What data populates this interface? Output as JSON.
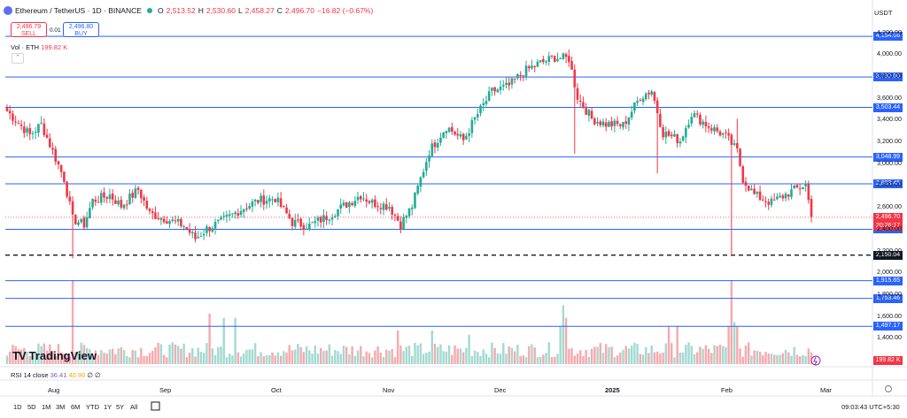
{
  "header": {
    "symbol": "Ethereum / TetherUS · 1D · BINANCE",
    "o_label": "O",
    "o_val": "2,513.52",
    "h_label": "H",
    "h_val": "2,530.60",
    "l_label": "L",
    "l_val": "2,458.27",
    "c_label": "C",
    "c_val": "2,496.70",
    "change": "−16.82 (−0.67%)"
  },
  "trade": {
    "sell_price": "2,496.79",
    "sell_label": "SELL",
    "buy_price": "2,496.80",
    "buy_label": "BUY",
    "spread": "0.01"
  },
  "volume_legend": {
    "label": "Vol · ETH",
    "value": "199.82 K"
  },
  "collapse_icon": "chevron-up-icon",
  "currency": "USDT",
  "price_axis": [
    "4,200.00",
    "4,000.00",
    "3,800.00",
    "3,600.00",
    "3,400.00",
    "3,200.00",
    "3,000.00",
    "2,800.00",
    "2,600.00",
    "2,400.00",
    "2,200.00",
    "2,000.00",
    "1,800.00",
    "1,600.00",
    "1,400.00"
  ],
  "levels": [
    {
      "price": 4154.06,
      "label": "4,154.06",
      "style": "solid"
    },
    {
      "price": 3782.06,
      "label": "3,782.06",
      "style": "solid"
    },
    {
      "price": 3503.44,
      "label": "3,503.44",
      "style": "solid"
    },
    {
      "price": 3048.99,
      "label": "3,048.99",
      "style": "solid"
    },
    {
      "price": 2803.45,
      "label": "2,803.45",
      "style": "solid"
    },
    {
      "price": 2386.5,
      "label": "2,386.50",
      "style": "solid"
    },
    {
      "price": 2150.04,
      "label": "2,150.04",
      "style": "dashed"
    },
    {
      "price": 1915.65,
      "label": "1,915.65",
      "style": "solid"
    },
    {
      "price": 1753.46,
      "label": "1,753.46",
      "style": "solid"
    },
    {
      "price": 1497.17,
      "label": "1,497.17",
      "style": "solid"
    }
  ],
  "last_price": {
    "label": "2,496.70",
    "countdown": "20:26:17"
  },
  "volume_tag": "199.82 K",
  "rsi": {
    "label": "RSI 14 close",
    "v1": "36.41",
    "v2": "40.90",
    "v3": "∅",
    "v4": "∅"
  },
  "time_axis": [
    {
      "label": "Aug",
      "bold": false
    },
    {
      "label": "Sep",
      "bold": false
    },
    {
      "label": "Oct",
      "bold": false
    },
    {
      "label": "Nov",
      "bold": false
    },
    {
      "label": "Dec",
      "bold": false
    },
    {
      "label": "2025",
      "bold": true
    },
    {
      "label": "Feb",
      "bold": false
    },
    {
      "label": "Mar",
      "bold": false
    }
  ],
  "timeframes": [
    "1D",
    "5D",
    "1M",
    "3M",
    "6M",
    "YTD",
    "1Y",
    "5Y",
    "All"
  ],
  "clock": "09:03:43 UTC+5:30",
  "logo_text": "TradingView",
  "colors": {
    "up": "#22ab94",
    "down": "#f23645",
    "level": "#2962ff",
    "vol_up": "#a3d9d0",
    "vol_down": "#f7a9ad"
  },
  "chart_data": {
    "type": "candlestick",
    "symbol": "ETHUSDT",
    "interval": "1D",
    "ylim": [
      1300,
      4300
    ],
    "anchors": [
      [
        0,
        3470
      ],
      [
        8,
        3250
      ],
      [
        12,
        3350
      ],
      [
        16,
        3100
      ],
      [
        20,
        2850
      ],
      [
        23,
        2480
      ],
      [
        27,
        2430
      ],
      [
        30,
        2650
      ],
      [
        36,
        2700
      ],
      [
        40,
        2600
      ],
      [
        46,
        2750
      ],
      [
        50,
        2530
      ],
      [
        56,
        2480
      ],
      [
        62,
        2420
      ],
      [
        66,
        2300
      ],
      [
        70,
        2390
      ],
      [
        76,
        2470
      ],
      [
        82,
        2570
      ],
      [
        88,
        2650
      ],
      [
        94,
        2670
      ],
      [
        100,
        2450
      ],
      [
        106,
        2420
      ],
      [
        112,
        2500
      ],
      [
        118,
        2600
      ],
      [
        124,
        2700
      ],
      [
        128,
        2630
      ],
      [
        134,
        2600
      ],
      [
        138,
        2430
      ],
      [
        142,
        2600
      ],
      [
        148,
        3100
      ],
      [
        154,
        3330
      ],
      [
        160,
        3200
      ],
      [
        164,
        3400
      ],
      [
        170,
        3650
      ],
      [
        176,
        3700
      ],
      [
        181,
        3830
      ],
      [
        186,
        3900
      ],
      [
        192,
        3960
      ],
      [
        197,
        3950
      ],
      [
        200,
        3600
      ],
      [
        205,
        3400
      ],
      [
        210,
        3350
      ],
      [
        216,
        3340
      ],
      [
        222,
        3600
      ],
      [
        226,
        3660
      ],
      [
        230,
        3270
      ],
      [
        236,
        3200
      ],
      [
        240,
        3450
      ],
      [
        246,
        3330
      ],
      [
        252,
        3240
      ],
      [
        256,
        3100
      ],
      [
        258,
        2850
      ],
      [
        262,
        2700
      ],
      [
        268,
        2630
      ],
      [
        274,
        2720
      ],
      [
        280,
        2800
      ],
      [
        282,
        2500
      ]
    ],
    "volume_spikes": [
      [
        23,
        1.0
      ],
      [
        71,
        0.6
      ],
      [
        76,
        0.55
      ],
      [
        80,
        0.55
      ],
      [
        137,
        0.4
      ],
      [
        149,
        0.4
      ],
      [
        162,
        0.35
      ],
      [
        194,
        0.45
      ],
      [
        195,
        0.7
      ],
      [
        196,
        0.55
      ],
      [
        232,
        0.45
      ],
      [
        235,
        0.45
      ],
      [
        253,
        0.45
      ],
      [
        254,
        1.0
      ],
      [
        255,
        0.5
      ],
      [
        256,
        0.45
      ]
    ]
  }
}
